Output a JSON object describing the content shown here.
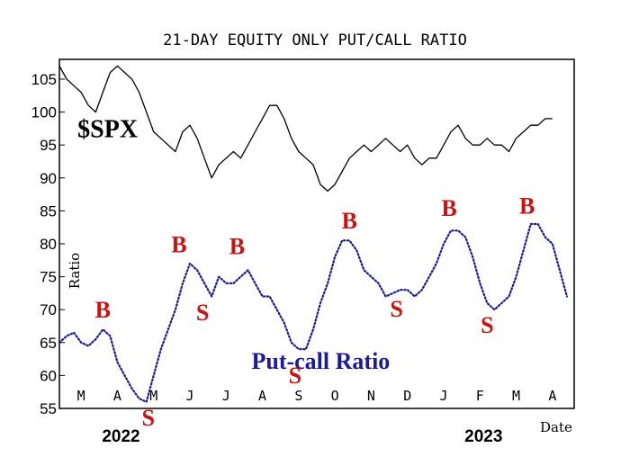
{
  "chart_data": {
    "type": "line",
    "title": "21-DAY EQUITY ONLY PUT/CALL RATIO",
    "xlabel": "Date",
    "ylabel": "Ratio",
    "ylim": [
      55,
      108
    ],
    "yticks": [
      55,
      60,
      65,
      70,
      75,
      80,
      85,
      90,
      95,
      100,
      105
    ],
    "xlim": [
      0,
      14.2
    ],
    "months": [
      {
        "label": "M",
        "x": 0.6
      },
      {
        "label": "A",
        "x": 1.6
      },
      {
        "label": "M",
        "x": 2.6
      },
      {
        "label": "J",
        "x": 3.6
      },
      {
        "label": "J",
        "x": 4.6
      },
      {
        "label": "A",
        "x": 5.6
      },
      {
        "label": "S",
        "x": 6.6
      },
      {
        "label": "O",
        "x": 7.6
      },
      {
        "label": "N",
        "x": 8.6
      },
      {
        "label": "D",
        "x": 9.6
      },
      {
        "label": "J",
        "x": 10.6
      },
      {
        "label": "F",
        "x": 11.6
      },
      {
        "label": "M",
        "x": 12.6
      },
      {
        "label": "A",
        "x": 13.6
      }
    ],
    "years": [
      {
        "label": "2022",
        "x": 1.7
      },
      {
        "label": "2023",
        "x": 11.7
      }
    ],
    "series": [
      {
        "name": "$SPX",
        "style": "solid",
        "color": "#000000",
        "points": [
          [
            0,
            107
          ],
          [
            0.2,
            105
          ],
          [
            0.4,
            104
          ],
          [
            0.6,
            103
          ],
          [
            0.8,
            101
          ],
          [
            1.0,
            100
          ],
          [
            1.2,
            103
          ],
          [
            1.4,
            106
          ],
          [
            1.6,
            107
          ],
          [
            1.8,
            106
          ],
          [
            2.0,
            105
          ],
          [
            2.2,
            103
          ],
          [
            2.4,
            100
          ],
          [
            2.6,
            97
          ],
          [
            2.8,
            96
          ],
          [
            3.0,
            95
          ],
          [
            3.2,
            94
          ],
          [
            3.4,
            97
          ],
          [
            3.6,
            98
          ],
          [
            3.8,
            96
          ],
          [
            4.0,
            93
          ],
          [
            4.2,
            90
          ],
          [
            4.4,
            92
          ],
          [
            4.6,
            93
          ],
          [
            4.8,
            94
          ],
          [
            5.0,
            93
          ],
          [
            5.2,
            95
          ],
          [
            5.4,
            97
          ],
          [
            5.6,
            99
          ],
          [
            5.8,
            101
          ],
          [
            6.0,
            101
          ],
          [
            6.2,
            99
          ],
          [
            6.4,
            96
          ],
          [
            6.6,
            94
          ],
          [
            6.8,
            93
          ],
          [
            7.0,
            92
          ],
          [
            7.2,
            89
          ],
          [
            7.4,
            88
          ],
          [
            7.6,
            89
          ],
          [
            7.8,
            91
          ],
          [
            8.0,
            93
          ],
          [
            8.2,
            94
          ],
          [
            8.4,
            95
          ],
          [
            8.6,
            94
          ],
          [
            8.8,
            95
          ],
          [
            9.0,
            96
          ],
          [
            9.2,
            95
          ],
          [
            9.4,
            94
          ],
          [
            9.6,
            95
          ],
          [
            9.8,
            93
          ],
          [
            10.0,
            92
          ],
          [
            10.2,
            93
          ],
          [
            10.4,
            93
          ],
          [
            10.6,
            95
          ],
          [
            10.8,
            97
          ],
          [
            11.0,
            98
          ],
          [
            11.2,
            96
          ],
          [
            11.4,
            95
          ],
          [
            11.6,
            95
          ],
          [
            11.8,
            96
          ],
          [
            12.0,
            95
          ],
          [
            12.2,
            95
          ],
          [
            12.4,
            94
          ],
          [
            12.6,
            96
          ],
          [
            12.8,
            97
          ],
          [
            13.0,
            98
          ],
          [
            13.2,
            98
          ],
          [
            13.4,
            99
          ],
          [
            13.6,
            99
          ]
        ]
      },
      {
        "name": "Put-call Ratio",
        "style": "dotted",
        "color": "#1a1a9e",
        "points": [
          [
            0,
            65
          ],
          [
            0.2,
            66
          ],
          [
            0.4,
            66.5
          ],
          [
            0.6,
            65
          ],
          [
            0.8,
            64.5
          ],
          [
            1.0,
            65.5
          ],
          [
            1.2,
            67
          ],
          [
            1.4,
            66
          ],
          [
            1.6,
            62
          ],
          [
            1.8,
            60
          ],
          [
            2.0,
            58
          ],
          [
            2.2,
            56.5
          ],
          [
            2.4,
            56
          ],
          [
            2.6,
            60
          ],
          [
            2.8,
            64
          ],
          [
            3.0,
            67
          ],
          [
            3.2,
            70
          ],
          [
            3.4,
            74
          ],
          [
            3.6,
            77
          ],
          [
            3.8,
            76
          ],
          [
            4.0,
            74
          ],
          [
            4.2,
            72
          ],
          [
            4.4,
            75
          ],
          [
            4.6,
            74
          ],
          [
            4.8,
            74
          ],
          [
            5.0,
            75
          ],
          [
            5.2,
            76
          ],
          [
            5.4,
            74
          ],
          [
            5.6,
            72
          ],
          [
            5.8,
            72
          ],
          [
            6.0,
            70
          ],
          [
            6.2,
            68
          ],
          [
            6.4,
            65
          ],
          [
            6.6,
            64
          ],
          [
            6.8,
            64
          ],
          [
            7.0,
            67
          ],
          [
            7.2,
            71
          ],
          [
            7.4,
            74
          ],
          [
            7.6,
            78
          ],
          [
            7.8,
            80.5
          ],
          [
            8.0,
            80.5
          ],
          [
            8.2,
            79
          ],
          [
            8.4,
            76
          ],
          [
            8.6,
            75
          ],
          [
            8.8,
            74
          ],
          [
            9.0,
            72
          ],
          [
            9.2,
            72.5
          ],
          [
            9.4,
            73
          ],
          [
            9.6,
            73
          ],
          [
            9.8,
            72
          ],
          [
            10.0,
            73
          ],
          [
            10.2,
            75
          ],
          [
            10.4,
            77
          ],
          [
            10.6,
            80
          ],
          [
            10.8,
            82
          ],
          [
            11.0,
            82
          ],
          [
            11.2,
            81
          ],
          [
            11.4,
            78
          ],
          [
            11.6,
            74
          ],
          [
            11.8,
            71
          ],
          [
            12.0,
            70
          ],
          [
            12.2,
            71
          ],
          [
            12.4,
            72
          ],
          [
            12.6,
            75
          ],
          [
            12.8,
            79
          ],
          [
            13.0,
            83
          ],
          [
            13.2,
            83
          ],
          [
            13.4,
            81
          ],
          [
            13.6,
            80
          ],
          [
            13.8,
            76
          ],
          [
            14.0,
            72
          ]
        ]
      }
    ],
    "series_labels": [
      {
        "text": "$SPX",
        "class": "spxlbl",
        "x": 0.5,
        "y": 96.2
      },
      {
        "text": "Put-call Ratio",
        "class": "pcrlbl",
        "x": 5.3,
        "y": 61.0
      }
    ],
    "signals": [
      {
        "label": "B",
        "x": 1.2,
        "y": 68.8
      },
      {
        "label": "S",
        "x": 2.45,
        "y": 52.4
      },
      {
        "label": "B",
        "x": 3.3,
        "y": 78.7
      },
      {
        "label": "S",
        "x": 3.95,
        "y": 68.4
      },
      {
        "label": "B",
        "x": 4.9,
        "y": 78.4
      },
      {
        "label": "S",
        "x": 6.5,
        "y": 58.8
      },
      {
        "label": "B",
        "x": 8.0,
        "y": 82.3
      },
      {
        "label": "S",
        "x": 9.3,
        "y": 68.9
      },
      {
        "label": "B",
        "x": 10.75,
        "y": 84.2
      },
      {
        "label": "S",
        "x": 11.8,
        "y": 66.5
      },
      {
        "label": "B",
        "x": 12.9,
        "y": 84.6
      }
    ],
    "grid": false,
    "legend": "none"
  }
}
